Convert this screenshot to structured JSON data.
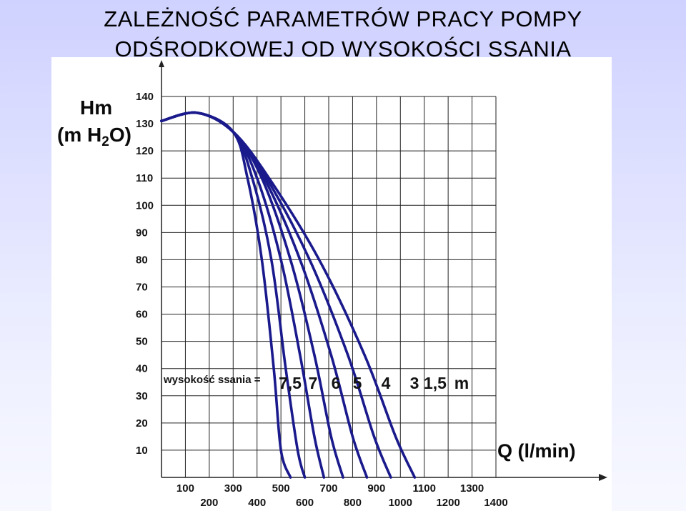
{
  "title": {
    "line1": "ZALEŻNOŚĆ PARAMETRÓW PRACY POMPY",
    "line2": "ODŚRODKOWEJ OD WYSOKOŚCI SSANIA"
  },
  "chart_data": {
    "type": "line",
    "ylabel_line1": "Hm",
    "ylabel_line2_prefix": "(m H",
    "ylabel_line2_sub": "2",
    "ylabel_line2_suffix": "O)",
    "xlabel": "Q (l/min)",
    "xlim": [
      0,
      1400
    ],
    "ylim": [
      0,
      140
    ],
    "xticks": [
      100,
      200,
      300,
      400,
      500,
      600,
      700,
      800,
      900,
      1000,
      1100,
      1200,
      1300,
      1400
    ],
    "yticks": [
      10,
      20,
      30,
      40,
      50,
      60,
      70,
      80,
      90,
      100,
      110,
      120,
      130,
      140
    ],
    "grid": true,
    "annotation": {
      "label": "wysokość ssania =",
      "values": [
        "7,5",
        "7",
        "6",
        "5",
        "4",
        "3",
        "1,5"
      ],
      "unit": "m"
    },
    "series": [
      {
        "name": "7,5",
        "x": [
          0,
          150,
          300,
          360,
          420,
          470,
          500,
          540
        ],
        "y": [
          131,
          134,
          127,
          110,
          80,
          40,
          10,
          0
        ]
      },
      {
        "name": "7",
        "x": [
          0,
          150,
          300,
          380,
          460,
          520,
          570,
          600
        ],
        "y": [
          131,
          134,
          127,
          110,
          80,
          40,
          10,
          0
        ]
      },
      {
        "name": "6",
        "x": [
          0,
          150,
          300,
          400,
          500,
          580,
          640,
          680
        ],
        "y": [
          131,
          134,
          127,
          110,
          80,
          45,
          15,
          0
        ]
      },
      {
        "name": "5",
        "x": [
          0,
          150,
          300,
          420,
          540,
          640,
          710,
          760
        ],
        "y": [
          131,
          134,
          127,
          110,
          80,
          45,
          15,
          0
        ]
      },
      {
        "name": "4",
        "x": [
          0,
          150,
          300,
          430,
          580,
          710,
          800,
          860
        ],
        "y": [
          131,
          134,
          127,
          110,
          80,
          45,
          15,
          0
        ]
      },
      {
        "name": "3",
        "x": [
          0,
          150,
          300,
          440,
          620,
          780,
          890,
          960
        ],
        "y": [
          131,
          134,
          127,
          110,
          80,
          45,
          15,
          0
        ]
      },
      {
        "name": "1,5",
        "x": [
          0,
          150,
          300,
          450,
          660,
          850,
          980,
          1060
        ],
        "y": [
          131,
          134,
          127,
          110,
          80,
          45,
          15,
          0
        ]
      }
    ]
  },
  "colors": {
    "curve": "#1a1a8c",
    "grid": "#222222",
    "background_top": "#cfd1ff",
    "background_bottom": "#f7f8ff"
  }
}
